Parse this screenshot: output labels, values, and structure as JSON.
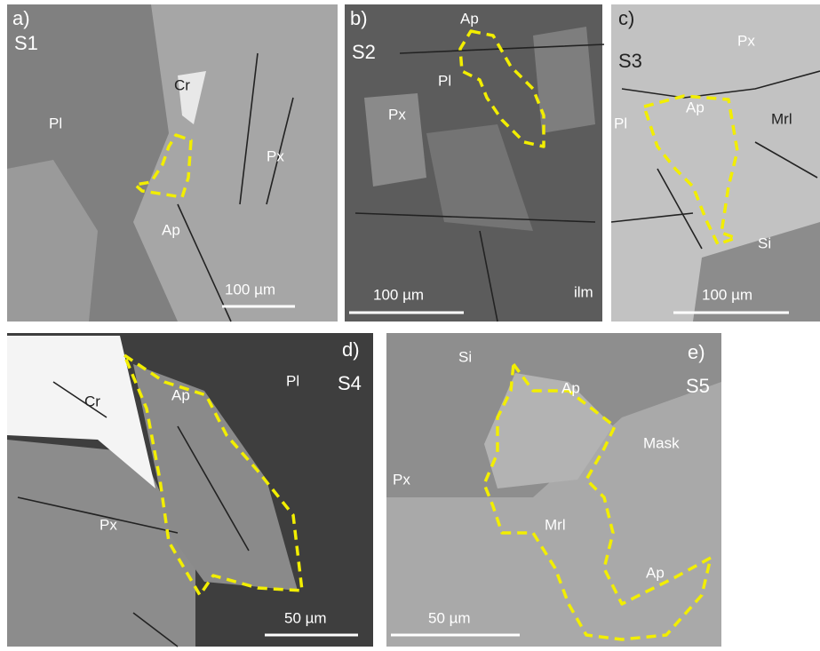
{
  "panels": [
    {
      "letter": "a)",
      "sample": "S1",
      "minerals": [
        "Pl",
        "Cr",
        "Px",
        "Ap"
      ],
      "scale_bar": "100 µm"
    },
    {
      "letter": "b)",
      "sample": "S2",
      "minerals": [
        "Ap",
        "Pl",
        "Px",
        "ilm"
      ],
      "scale_bar": "100 µm"
    },
    {
      "letter": "c)",
      "sample": "S3",
      "minerals": [
        "Px",
        "Ap",
        "Mrl",
        "Pl",
        "Si"
      ],
      "scale_bar": "100 µm"
    },
    {
      "letter": "d)",
      "sample": "S4",
      "minerals": [
        "Cr",
        "Ap",
        "Pl",
        "Px"
      ],
      "scale_bar": "50 µm"
    },
    {
      "letter": "e)",
      "sample": "S5",
      "minerals": [
        "Si",
        "Ap",
        "Mask",
        "Px",
        "Mrl",
        "Ap"
      ],
      "scale_bar": "50 µm"
    }
  ]
}
